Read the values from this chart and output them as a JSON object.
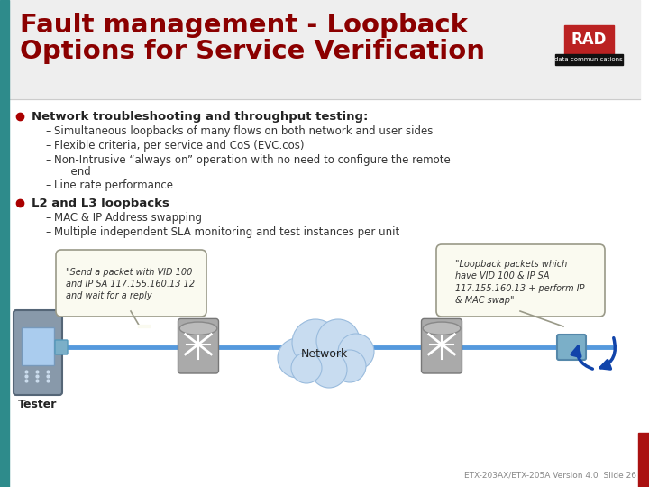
{
  "title_line1": "Fault management - Loopback",
  "title_line2": "Options for Service Verification",
  "title_color": "#8B0000",
  "bg_color": "#FFFFFF",
  "header_bg": "#EEEEEE",
  "accent_bar_color": "#2E8B8B",
  "red_bar_color": "#AA1111",
  "bullet1": "Network troubleshooting and throughput testing:",
  "sub1_1": "Simultaneous loopbacks of many flows on both network and user sides",
  "sub1_2": "Flexible criteria, per service and CoS (EVC.cos)",
  "sub1_3a": "Non-Intrusive “always on” operation with no need to configure the remote",
  "sub1_3b": "end",
  "sub1_4": "Line rate performance",
  "bullet2": "L2 and L3 loopbacks",
  "sub2_1": "MAC & IP Address swapping",
  "sub2_2": "Multiple independent SLA monitoring and test instances per unit",
  "speech1": "\"Send a packet with VID 100\nand IP SA 117.155.160.13 12\nand wait for a reply",
  "speech2": "\"Loopback packets which\nhave VID 100 & IP SA\n117.155.160.13 + perform IP\n& MAC swap\"",
  "network_label": "Network",
  "tester_label": "Tester",
  "footer": "ETX-203AX/ETX-205A Version 4.0  Slide 26",
  "footer_color": "#888888",
  "bullet_color": "#AA0000",
  "text_color": "#222222",
  "sub_text_color": "#333333",
  "line_color": "#000000",
  "router_color": "#999999",
  "router_light": "#BBBBBB",
  "cloud_color": "#C8DCF0",
  "speech_fill": "#FAFAF0",
  "speech_edge": "#999988",
  "arrow_color": "#1144AA",
  "connector_color": "#5599DD",
  "device_color": "#7899BB"
}
